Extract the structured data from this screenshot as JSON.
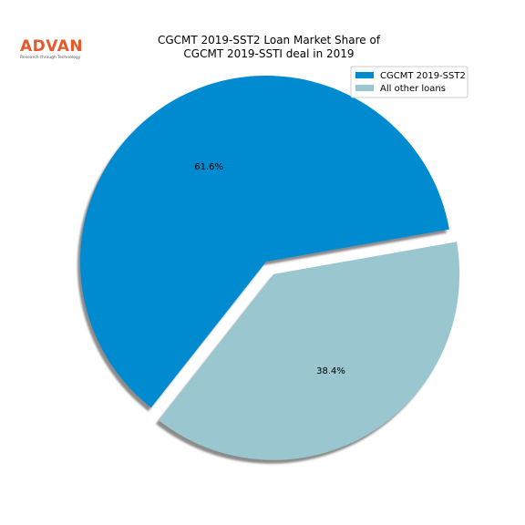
{
  "logo": {
    "name": "ADVAN",
    "tagline": "Research through Technology",
    "color": "#e8582a"
  },
  "chart_data": {
    "type": "pie",
    "title": "CGCMT 2019-SST2 Loan Market Share of\nCGCMT 2019-SSTI deal in 2019",
    "slices": [
      {
        "label": "CGCMT 2019-SST2",
        "value": 61.6,
        "display": "61.6%",
        "color": "#008bd0",
        "exploded": false
      },
      {
        "label": "All other loans",
        "value": 38.4,
        "display": "38.4%",
        "color": "#9ac6d0",
        "exploded": true
      }
    ],
    "start_angle_deg": 10,
    "shadow": true,
    "legend_position": "top-right"
  }
}
